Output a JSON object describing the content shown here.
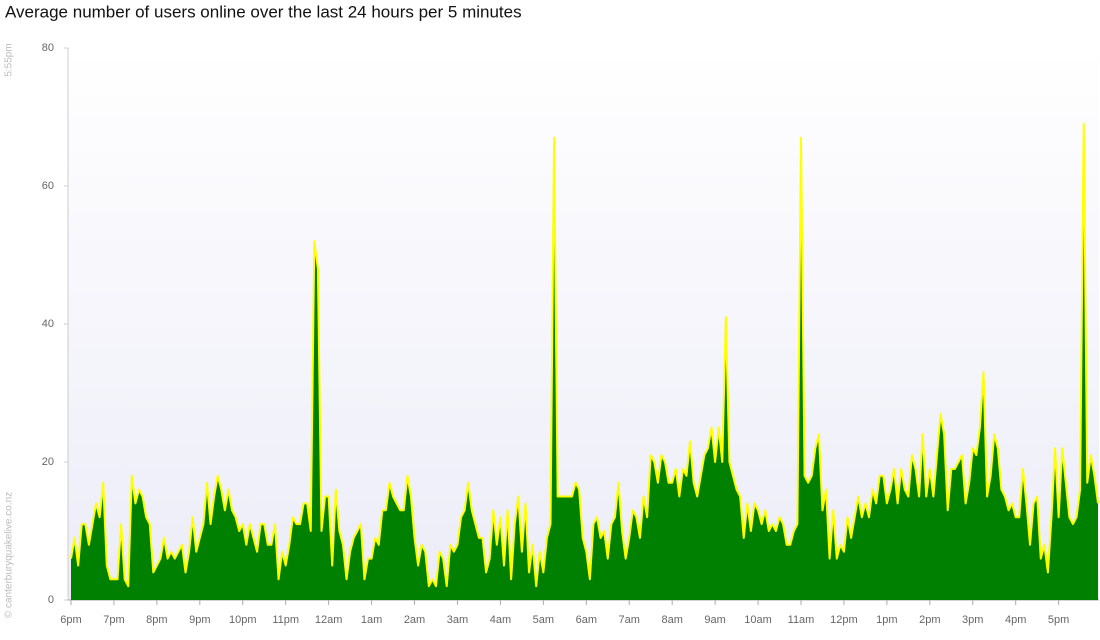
{
  "chart_data": {
    "type": "area",
    "title": "Average number of users online over the last 24 hours per 5 minutes",
    "timestamp": "5:55pm",
    "credit": "© canterburyquakelive.co.nz",
    "categories": [
      "6pm",
      null,
      null,
      null,
      null,
      null,
      null,
      null,
      null,
      null,
      null,
      null,
      "7pm",
      null,
      null,
      null,
      null,
      null,
      null,
      null,
      null,
      null,
      null,
      null,
      "8pm",
      null,
      null,
      null,
      null,
      null,
      null,
      null,
      null,
      null,
      null,
      null,
      "9pm",
      null,
      null,
      null,
      null,
      null,
      null,
      null,
      null,
      null,
      null,
      null,
      "10pm",
      null,
      null,
      null,
      null,
      null,
      null,
      null,
      null,
      null,
      null,
      null,
      "11pm",
      null,
      null,
      null,
      null,
      null,
      null,
      null,
      null,
      null,
      null,
      null,
      "12am",
      null,
      null,
      null,
      null,
      null,
      null,
      null,
      null,
      null,
      null,
      null,
      "1am",
      null,
      null,
      null,
      null,
      null,
      null,
      null,
      null,
      null,
      null,
      null,
      "2am",
      null,
      null,
      null,
      null,
      null,
      null,
      null,
      null,
      null,
      null,
      null,
      "3am",
      null,
      null,
      null,
      null,
      null,
      null,
      null,
      null,
      null,
      null,
      null,
      "4am",
      null,
      null,
      null,
      null,
      null,
      null,
      null,
      null,
      null,
      null,
      null,
      "5am",
      null,
      null,
      null,
      null,
      null,
      null,
      null,
      null,
      null,
      null,
      null,
      "6am",
      null,
      null,
      null,
      null,
      null,
      null,
      null,
      null,
      null,
      null,
      null,
      "7am",
      null,
      null,
      null,
      null,
      null,
      null,
      null,
      null,
      null,
      null,
      null,
      "8am",
      null,
      null,
      null,
      null,
      null,
      null,
      null,
      null,
      null,
      null,
      null,
      "9am",
      null,
      null,
      null,
      null,
      null,
      null,
      null,
      null,
      null,
      null,
      null,
      "10am",
      null,
      null,
      null,
      null,
      null,
      null,
      null,
      null,
      null,
      null,
      null,
      "11am",
      null,
      null,
      null,
      null,
      null,
      null,
      null,
      null,
      null,
      null,
      null,
      "12pm",
      null,
      null,
      null,
      null,
      null,
      null,
      null,
      null,
      null,
      null,
      null,
      "1pm",
      null,
      null,
      null,
      null,
      null,
      null,
      null,
      null,
      null,
      null,
      null,
      "2pm",
      null,
      null,
      null,
      null,
      null,
      null,
      null,
      null,
      null,
      null,
      null,
      "3pm",
      null,
      null,
      null,
      null,
      null,
      null,
      null,
      null,
      null,
      null,
      null,
      "4pm",
      null,
      null,
      null,
      null,
      null,
      null,
      null,
      null,
      null,
      null,
      null,
      "5pm",
      null,
      null,
      null,
      null,
      null,
      null,
      null,
      null,
      null,
      null,
      null
    ],
    "series": [
      {
        "name": "Users online",
        "color": "#008000",
        "line_color": "#ffff00",
        "values": [
          6,
          9,
          5,
          11,
          11,
          8,
          11,
          14,
          12,
          17,
          5,
          3,
          3,
          3,
          11,
          3,
          2,
          18,
          14,
          16,
          15,
          12,
          11,
          4,
          5,
          6,
          9,
          6,
          7,
          6,
          7,
          8,
          4,
          7,
          12,
          7,
          9,
          11,
          17,
          11,
          15,
          18,
          16,
          13,
          16,
          13,
          12,
          10,
          11,
          8,
          11,
          9,
          7,
          11,
          11,
          8,
          8,
          11,
          3,
          7,
          5,
          8,
          12,
          11,
          11,
          14,
          14,
          10,
          52,
          48,
          10,
          15,
          15,
          5,
          16,
          10,
          8,
          3,
          7,
          9,
          10,
          11,
          3,
          6,
          6,
          9,
          8,
          13,
          13,
          17,
          15,
          14,
          13,
          13,
          18,
          15,
          9,
          5,
          8,
          7,
          2,
          3,
          2,
          7,
          6,
          2,
          8,
          7,
          8,
          12,
          13,
          17,
          13,
          11,
          9,
          9,
          4,
          6,
          13,
          8,
          12,
          5,
          13,
          3,
          11,
          15,
          7,
          14,
          4,
          8,
          2,
          7,
          4,
          9,
          11,
          67,
          15,
          15,
          15,
          15,
          15,
          17,
          16,
          9,
          7,
          3,
          11,
          12,
          9,
          10,
          6,
          11,
          12,
          17,
          10,
          6,
          9,
          13,
          12,
          9,
          15,
          12,
          21,
          20,
          17,
          21,
          20,
          17,
          17,
          19,
          15,
          19,
          18,
          23,
          17,
          15,
          18,
          21,
          22,
          25,
          20,
          25,
          20,
          41,
          20,
          18,
          16,
          15,
          9,
          14,
          10,
          14,
          13,
          11,
          13,
          10,
          11,
          10,
          12,
          11,
          8,
          8,
          10,
          11,
          67,
          18,
          17,
          18,
          22,
          24,
          13,
          16,
          6,
          13,
          6,
          8,
          7,
          12,
          9,
          12,
          15,
          12,
          14,
          12,
          16,
          14,
          18,
          18,
          14,
          16,
          19,
          14,
          19,
          16,
          15,
          21,
          19,
          15,
          24,
          15,
          19,
          15,
          21,
          27,
          24,
          13,
          19,
          19,
          20,
          21,
          14,
          17,
          22,
          21,
          25,
          33,
          15,
          18,
          24,
          22,
          16,
          15,
          13,
          14,
          12,
          12,
          19,
          14,
          8,
          14,
          15,
          6,
          8,
          4,
          12,
          22,
          12,
          22,
          17,
          12,
          11,
          12,
          16,
          69,
          17,
          21,
          18,
          14
        ]
      }
    ],
    "ylim": [
      0,
      80
    ],
    "yticks": [
      0,
      20,
      40,
      60,
      80
    ],
    "grid": false
  }
}
